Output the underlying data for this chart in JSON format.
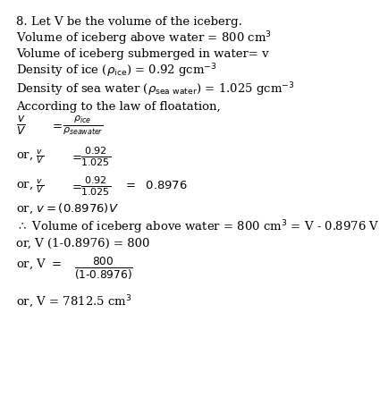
{
  "bg_color": "#ffffff",
  "text_color": "#000000",
  "fs": 9.5,
  "line1": "8. Let V be the volume of the iceberg.",
  "line2": "Volume of iceberg above water = 800 cm$^3$",
  "line3": "Volume of iceberg submerged in water= v",
  "line4": "Density of ice ($\\rho_{\\rm ice}$) = 0.92 gcm$^{-3}$",
  "line5": "Density of sea water ($\\rho_{\\rm sea\\ water}$) = 1.025 gcm$^{-3}$",
  "line6": "According to the law of floatation,",
  "line_or_v": "or, $v = (0.8976)V$",
  "line_therefore": "$\\therefore$ Volume of iceberg above water = 800 cm$^3$ = V - 0.8976 V",
  "line_v1": "or, V (1-0.8976) = 800",
  "line_v3": "or, V = 7812.5 cm$^3$"
}
